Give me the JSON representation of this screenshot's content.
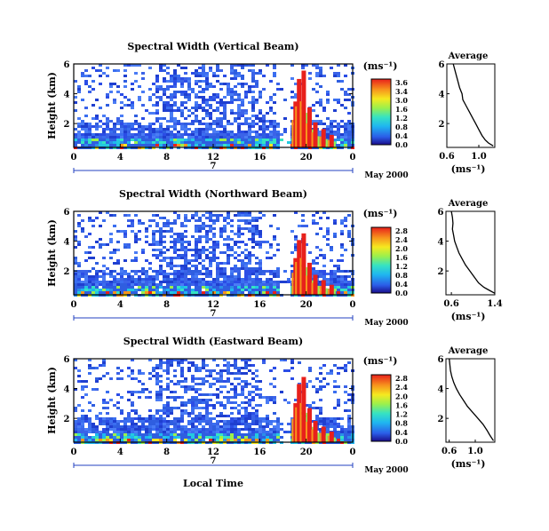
{
  "chart_data": [
    {
      "type": "heatmap",
      "title": "Spectral Width (Vertical Beam)",
      "ylabel": "Height (km)",
      "xlabel": "",
      "x_ticks": [
        "0",
        "4",
        "8",
        "12",
        "16",
        "20",
        "0"
      ],
      "y_ticks": [
        "6",
        "4",
        "2"
      ],
      "day_label": "7",
      "date_label": "May 2000",
      "xlim": [
        0,
        24
      ],
      "ylim": [
        0.4,
        6.0
      ],
      "colorbar": {
        "unit": "(ms⁻¹)",
        "ticks": [
          "3.6",
          "3.4",
          "3.0",
          "1.6",
          "1.2",
          "0.8",
          "0.4",
          "0.0"
        ],
        "range": [
          0.0,
          3.6
        ]
      },
      "average_profile": {
        "title": "Average",
        "xlabel": "(ms⁻¹)",
        "x_ticks": [
          "0.6",
          "1.0"
        ],
        "y_ticks": [
          "6",
          "4",
          "2"
        ],
        "xlim": [
          0.6,
          1.2
        ],
        "ylim": [
          0.4,
          6.0
        ],
        "points": [
          [
            0.68,
            6.0
          ],
          [
            0.7,
            5.6
          ],
          [
            0.72,
            5.2
          ],
          [
            0.74,
            4.8
          ],
          [
            0.76,
            4.4
          ],
          [
            0.79,
            4.0
          ],
          [
            0.8,
            3.6
          ],
          [
            0.84,
            3.2
          ],
          [
            0.88,
            2.8
          ],
          [
            0.92,
            2.4
          ],
          [
            0.96,
            2.0
          ],
          [
            1.0,
            1.6
          ],
          [
            1.04,
            1.2
          ],
          [
            1.08,
            0.9
          ],
          [
            1.12,
            0.7
          ],
          [
            1.18,
            0.5
          ]
        ]
      }
    },
    {
      "type": "heatmap",
      "title": "Spectral Width (Northward Beam)",
      "ylabel": "Height (km)",
      "xlabel": "",
      "x_ticks": [
        "0",
        "4",
        "8",
        "12",
        "16",
        "20",
        "0"
      ],
      "y_ticks": [
        "6",
        "4",
        "2"
      ],
      "day_label": "7",
      "date_label": "May 2000",
      "xlim": [
        0,
        24
      ],
      "ylim": [
        0.4,
        6.0
      ],
      "colorbar": {
        "unit": "(ms⁻¹)",
        "ticks": [
          "2.8",
          "2.4",
          "2.0",
          "1.6",
          "1.2",
          "0.8",
          "0.4",
          "0.0"
        ],
        "range": [
          0.0,
          2.8
        ]
      },
      "average_profile": {
        "title": "Average",
        "xlabel": "(ms⁻¹)",
        "x_ticks": [
          "0.6",
          "1.4"
        ],
        "y_ticks": [
          "6",
          "4",
          "2"
        ],
        "xlim": [
          0.5,
          1.4
        ],
        "ylim": [
          0.4,
          6.0
        ],
        "points": [
          [
            0.6,
            6.0
          ],
          [
            0.62,
            5.6
          ],
          [
            0.63,
            5.2
          ],
          [
            0.62,
            4.8
          ],
          [
            0.64,
            4.4
          ],
          [
            0.66,
            4.0
          ],
          [
            0.7,
            3.6
          ],
          [
            0.74,
            3.2
          ],
          [
            0.8,
            2.8
          ],
          [
            0.86,
            2.4
          ],
          [
            0.94,
            2.0
          ],
          [
            1.02,
            1.6
          ],
          [
            1.1,
            1.2
          ],
          [
            1.2,
            0.9
          ],
          [
            1.3,
            0.7
          ],
          [
            1.4,
            0.5
          ]
        ]
      }
    },
    {
      "type": "heatmap",
      "title": "Spectral Width (Eastward Beam)",
      "ylabel": "Height (km)",
      "xlabel": "Local Time",
      "x_ticks": [
        "0",
        "4",
        "8",
        "12",
        "16",
        "20",
        "0"
      ],
      "y_ticks": [
        "6",
        "4",
        "2"
      ],
      "day_label": "7",
      "date_label": "May 2000",
      "xlim": [
        0,
        24
      ],
      "ylim": [
        0.4,
        6.0
      ],
      "colorbar": {
        "unit": "(ms⁻¹)",
        "ticks": [
          "2.8",
          "2.4",
          "2.0",
          "1.6",
          "1.2",
          "0.8",
          "0.4",
          "0.0"
        ],
        "range": [
          0.0,
          2.8
        ]
      },
      "average_profile": {
        "title": "Average",
        "xlabel": "(ms⁻¹)",
        "x_ticks": [
          "0.6",
          "1.0"
        ],
        "y_ticks": [
          "6",
          "4",
          "2"
        ],
        "xlim": [
          0.55,
          1.3
        ],
        "ylim": [
          0.4,
          6.0
        ],
        "points": [
          [
            0.6,
            6.0
          ],
          [
            0.61,
            5.6
          ],
          [
            0.62,
            5.2
          ],
          [
            0.64,
            4.8
          ],
          [
            0.67,
            4.4
          ],
          [
            0.71,
            4.0
          ],
          [
            0.76,
            3.6
          ],
          [
            0.82,
            3.2
          ],
          [
            0.88,
            2.8
          ],
          [
            0.96,
            2.4
          ],
          [
            1.04,
            2.0
          ],
          [
            1.12,
            1.6
          ],
          [
            1.18,
            1.2
          ],
          [
            1.22,
            0.9
          ],
          [
            1.25,
            0.7
          ],
          [
            1.28,
            0.5
          ]
        ]
      }
    }
  ]
}
